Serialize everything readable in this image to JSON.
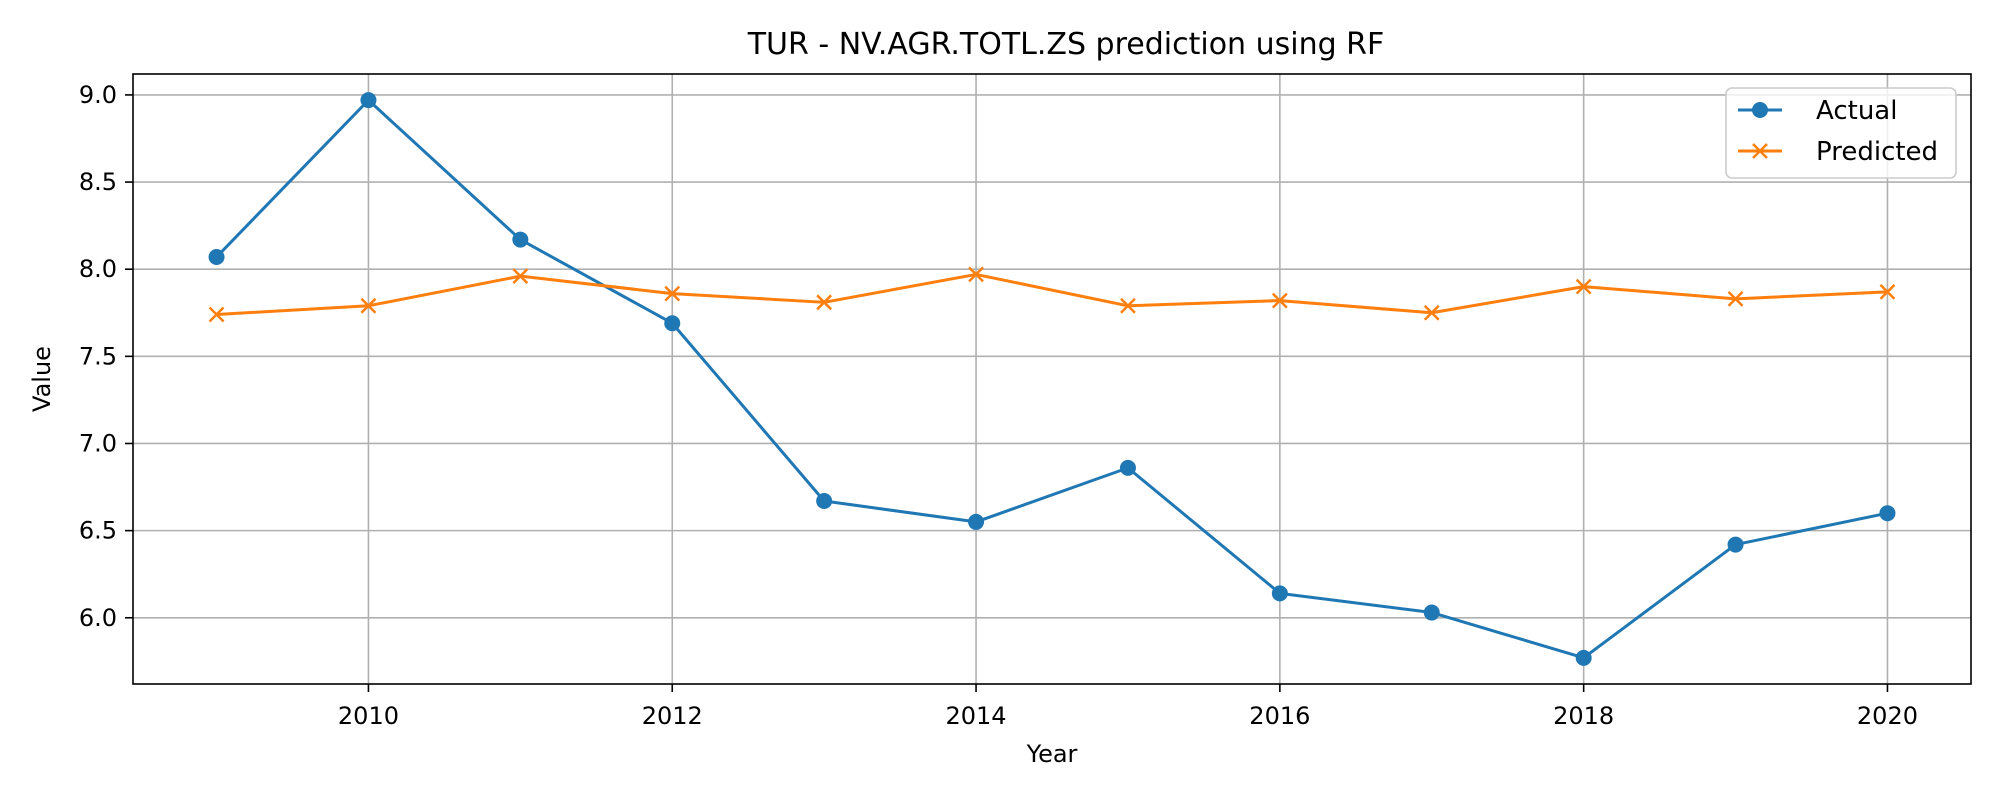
{
  "chart_data": {
    "type": "line",
    "title": "TUR - NV.AGR.TOTL.ZS prediction using RF",
    "xlabel": "Year",
    "ylabel": "Value",
    "x": [
      2009,
      2010,
      2011,
      2012,
      2013,
      2014,
      2015,
      2016,
      2017,
      2018,
      2019,
      2020
    ],
    "xlim": [
      2008.45,
      2020.55
    ],
    "ylim": [
      5.62,
      9.12
    ],
    "x_ticks": [
      2010,
      2012,
      2014,
      2016,
      2018,
      2020
    ],
    "y_ticks": [
      6.0,
      6.5,
      7.0,
      7.5,
      8.0,
      8.5,
      9.0
    ],
    "y_tick_labels": [
      "6.0",
      "6.5",
      "7.0",
      "7.5",
      "8.0",
      "8.5",
      "9.0"
    ],
    "grid": true,
    "legend_position": "top-right",
    "series": [
      {
        "name": "Actual",
        "color": "#1f77b4",
        "marker": "circle",
        "values": [
          8.07,
          8.97,
          8.17,
          7.69,
          6.67,
          6.55,
          6.86,
          6.14,
          6.03,
          5.77,
          6.42,
          6.6
        ]
      },
      {
        "name": "Predicted",
        "color": "#ff7f0e",
        "marker": "x",
        "values": [
          7.74,
          7.79,
          7.96,
          7.86,
          7.81,
          7.97,
          7.79,
          7.82,
          7.75,
          7.9,
          7.83,
          7.87
        ]
      }
    ]
  }
}
